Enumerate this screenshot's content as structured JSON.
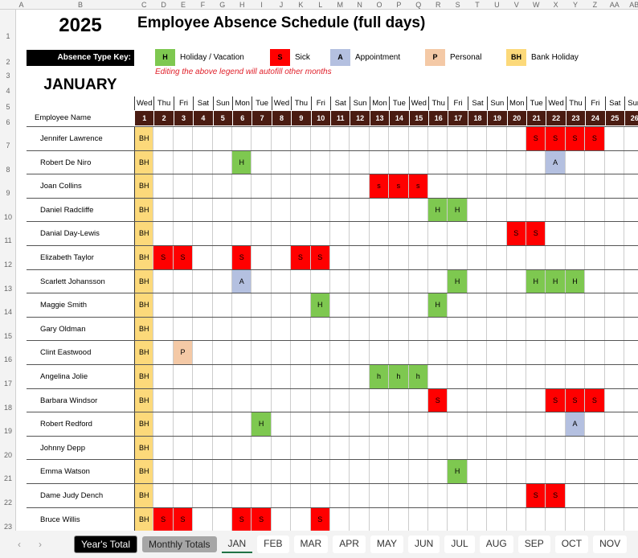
{
  "columns": [
    "A",
    "B",
    "C",
    "D",
    "E",
    "F",
    "G",
    "H",
    "I",
    "J",
    "K",
    "L",
    "M",
    "N",
    "O",
    "P",
    "Q",
    "R",
    "S",
    "T",
    "U",
    "V",
    "W",
    "X",
    "Y",
    "Z",
    "AA",
    "AB"
  ],
  "rows": [
    "1",
    "2",
    "3",
    "4",
    "5",
    "6",
    "7",
    "8",
    "9",
    "10",
    "11",
    "12",
    "13",
    "14",
    "15",
    "16",
    "17",
    "18",
    "19",
    "20",
    "21",
    "22",
    "23"
  ],
  "year": "2025",
  "title": "Employee Absence Schedule (full days)",
  "key_label": "Absence Type Key:",
  "month": "JANUARY",
  "legend": [
    {
      "code": "H",
      "label": "Holiday / Vacation",
      "color": "#7ec850"
    },
    {
      "code": "S",
      "label": "Sick",
      "color": "#ff0000"
    },
    {
      "code": "A",
      "label": "Appointment",
      "color": "#b4c0e0"
    },
    {
      "code": "P",
      "label": "Personal",
      "color": "#f4c9a6"
    },
    {
      "code": "BH",
      "label": "Bank Holiday",
      "color": "#fcd97a"
    }
  ],
  "note": "Editing the above legend will autofill other months",
  "employee_header": "Employee Name",
  "weekdays": [
    "Wed",
    "Thu",
    "Fri",
    "Sat",
    "Sun",
    "Mon",
    "Tue",
    "Wed",
    "Thu",
    "Fri",
    "Sat",
    "Sun",
    "Mon",
    "Tue",
    "Wed",
    "Thu",
    "Fri",
    "Sat",
    "Sun",
    "Mon",
    "Tue",
    "Wed",
    "Thu",
    "Fri",
    "Sat",
    "Sun"
  ],
  "days": [
    "1",
    "2",
    "3",
    "4",
    "5",
    "6",
    "7",
    "8",
    "9",
    "10",
    "11",
    "12",
    "13",
    "14",
    "15",
    "16",
    "17",
    "18",
    "19",
    "20",
    "21",
    "22",
    "23",
    "24",
    "25",
    "26"
  ],
  "employees": [
    {
      "name": "Jennifer Lawrence",
      "absences": {
        "1": "BH",
        "21": "S",
        "22": "S",
        "23": "S",
        "24": "S"
      }
    },
    {
      "name": "Robert De Niro",
      "absences": {
        "1": "BH",
        "6": "H",
        "22": "A"
      }
    },
    {
      "name": "Joan Collins",
      "absences": {
        "1": "BH",
        "13": "s",
        "14": "s",
        "15": "s"
      }
    },
    {
      "name": "Daniel Radcliffe",
      "absences": {
        "1": "BH",
        "16": "H",
        "17": "H"
      }
    },
    {
      "name": "Danial Day-Lewis",
      "absences": {
        "1": "BH",
        "20": "S",
        "21": "S"
      }
    },
    {
      "name": "Elizabeth Taylor",
      "absences": {
        "1": "BH",
        "2": "S",
        "3": "S",
        "6": "S",
        "9": "S",
        "10": "S"
      }
    },
    {
      "name": "Scarlett Johansson",
      "absences": {
        "1": "BH",
        "6": "A",
        "17": "H",
        "21": "H",
        "22": "H",
        "23": "H"
      }
    },
    {
      "name": "Maggie Smith",
      "absences": {
        "1": "BH",
        "10": "H",
        "16": "H"
      }
    },
    {
      "name": "Gary Oldman",
      "absences": {
        "1": "BH"
      }
    },
    {
      "name": "Clint Eastwood",
      "absences": {
        "1": "BH",
        "3": "P"
      }
    },
    {
      "name": "Angelina Jolie",
      "absences": {
        "1": "BH",
        "13": "h",
        "14": "h",
        "15": "h"
      }
    },
    {
      "name": "Barbara Windsor",
      "absences": {
        "1": "BH",
        "16": "S",
        "22": "S",
        "23": "S",
        "24": "S"
      }
    },
    {
      "name": "Robert Redford",
      "absences": {
        "1": "BH",
        "7": "H",
        "23": "A"
      }
    },
    {
      "name": "Johnny Depp",
      "absences": {
        "1": "BH"
      }
    },
    {
      "name": "Emma Watson",
      "absences": {
        "1": "BH",
        "17": "H"
      }
    },
    {
      "name": "Dame Judy Dench",
      "absences": {
        "1": "BH",
        "21": "S",
        "22": "S"
      }
    },
    {
      "name": "Bruce Willis",
      "absences": {
        "1": "BH",
        "2": "S",
        "3": "S",
        "6": "S",
        "7": "S",
        "10": "S"
      }
    }
  ],
  "tabs": {
    "year_total": "Year's Total",
    "monthly_totals": "Monthly Totals",
    "months": [
      "JAN",
      "FEB",
      "MAR",
      "APR",
      "MAY",
      "JUN",
      "JUL",
      "AUG",
      "SEP",
      "OCT",
      "NOV"
    ],
    "active": "JAN"
  }
}
